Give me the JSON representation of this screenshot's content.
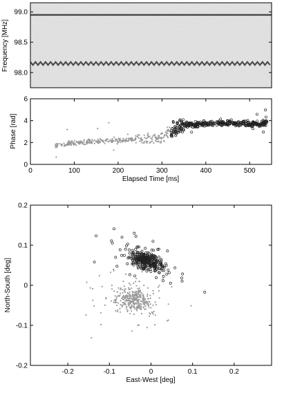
{
  "chart_data": [
    {
      "type": "heatmap",
      "ylabel": "Frequency [MHz]",
      "ylim": [
        97.75,
        99.15
      ],
      "yticks": [
        "99.0",
        "98.5",
        "98.0"
      ],
      "ytick_values": [
        99.0,
        98.5,
        98.0
      ],
      "xlim": [
        0,
        550
      ],
      "bands": [
        {
          "center_mhz": 98.95,
          "pattern": "steady line"
        },
        {
          "center_mhz": 98.15,
          "pattern": "periodic zigzag"
        }
      ]
    },
    {
      "type": "scatter",
      "xlabel": "Elapsed Time [ms]",
      "ylabel": "Phase [rad]",
      "xlim": [
        0,
        550
      ],
      "ylim": [
        0,
        6
      ],
      "xticks": [
        "0",
        "100",
        "200",
        "300",
        "400",
        "500"
      ],
      "xtick_values": [
        0,
        100,
        200,
        300,
        400,
        500
      ],
      "yticks": [
        "6",
        "4",
        "2",
        "0"
      ],
      "ytick_values": [
        6,
        4,
        2,
        0
      ],
      "series": [
        {
          "color": "#999999",
          "marker": "dot",
          "trend": {
            "x": [
              55,
              100,
              150,
              200,
              250,
              300,
              320
            ],
            "y": [
              1.7,
              1.95,
              2.1,
              2.2,
              2.3,
              2.5,
              3.1
            ]
          }
        },
        {
          "color": "#222222",
          "marker": "circle",
          "trend": {
            "x": [
              320,
              350,
              400,
              450,
              500,
              540
            ],
            "y": [
              2.9,
              3.6,
              3.7,
              3.75,
              3.7,
              3.75
            ]
          }
        }
      ]
    },
    {
      "type": "scatter",
      "xlabel": "East-West [deg]",
      "ylabel": "North-South [deg]",
      "xlim": [
        -0.29,
        0.29
      ],
      "ylim": [
        -0.2,
        0.2
      ],
      "xticks": [
        "-0.2",
        "-0.1",
        "0",
        "0.1",
        "0.2"
      ],
      "xtick_values": [
        -0.2,
        -0.1,
        0,
        0.1,
        0.2
      ],
      "yticks": [
        "0.2",
        "0.1",
        "0",
        "-0.1",
        "-0.2"
      ],
      "ytick_values": [
        0.2,
        0.1,
        0,
        -0.1,
        -0.2
      ],
      "series": [
        {
          "color": "#999999",
          "marker": "dot",
          "cluster": {
            "center": [
              -0.04,
              -0.035
            ],
            "spread": [
              0.05,
              0.035
            ]
          }
        },
        {
          "color": "#222222",
          "marker": "circle",
          "cluster": {
            "center": [
              -0.01,
              0.06
            ],
            "spread": [
              0.045,
              0.025
            ]
          }
        }
      ]
    }
  ]
}
